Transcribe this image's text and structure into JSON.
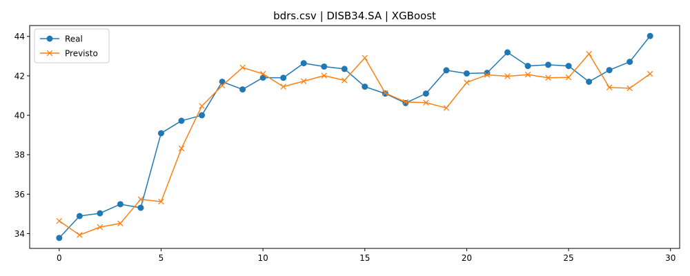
{
  "chart_data": {
    "type": "line",
    "title": "bdrs.csv | DISB34.SA | XGBoost",
    "xlabel": "",
    "ylabel": "",
    "xlim": [
      -1.45,
      30.45
    ],
    "ylim": [
      33.25,
      44.55
    ],
    "xticks": [
      0,
      5,
      10,
      15,
      20,
      25,
      30
    ],
    "yticks": [
      34,
      36,
      38,
      40,
      42,
      44
    ],
    "grid": false,
    "legend_position": "top-left",
    "x": [
      0,
      1,
      2,
      3,
      4,
      5,
      6,
      7,
      8,
      9,
      10,
      11,
      12,
      13,
      14,
      15,
      16,
      17,
      18,
      19,
      20,
      21,
      22,
      23,
      24,
      25,
      26,
      27,
      28,
      29
    ],
    "series": [
      {
        "name": "Real",
        "color": "#1f77b4",
        "marker": "circle",
        "values": [
          33.78,
          34.89,
          35.03,
          35.49,
          35.31,
          39.09,
          39.72,
          40.0,
          41.7,
          41.31,
          41.91,
          41.9,
          42.64,
          42.47,
          42.35,
          41.45,
          41.1,
          40.62,
          41.1,
          42.28,
          42.12,
          42.15,
          43.19,
          42.5,
          42.56,
          42.5,
          41.7,
          42.29,
          42.71,
          44.02
        ]
      },
      {
        "name": "Previsto",
        "color": "#ff7f0e",
        "marker": "x",
        "values": [
          34.64,
          33.93,
          34.33,
          34.52,
          35.74,
          35.62,
          38.32,
          40.47,
          41.51,
          42.42,
          42.1,
          41.45,
          41.73,
          42.01,
          41.77,
          42.91,
          41.13,
          40.67,
          40.64,
          40.37,
          41.66,
          42.05,
          41.98,
          42.06,
          41.9,
          41.92,
          43.11,
          41.41,
          41.37,
          42.1
        ]
      }
    ]
  }
}
